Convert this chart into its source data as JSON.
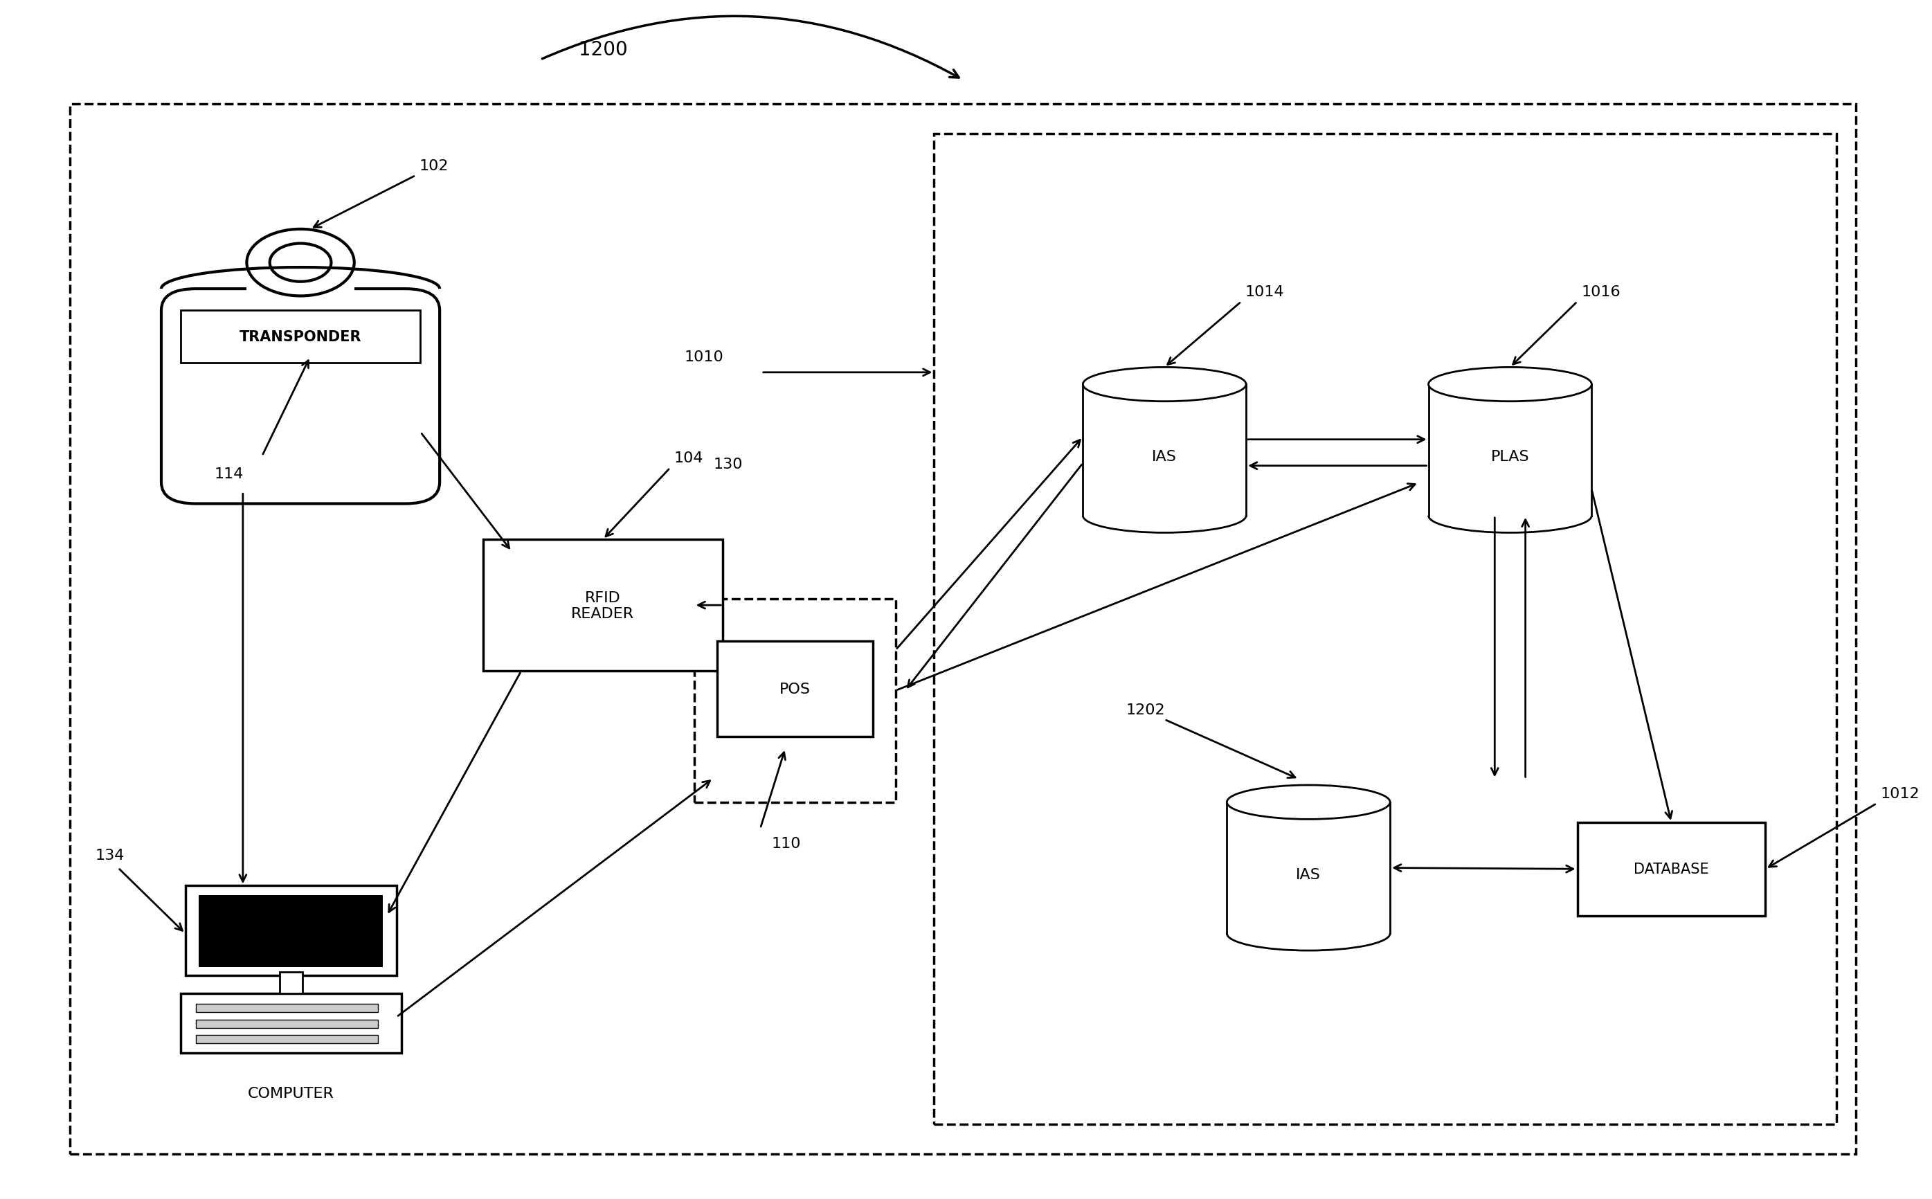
{
  "bg_color": "#ffffff",
  "line_color": "#000000",
  "fig_width": 27.91,
  "fig_height": 17.33,
  "label_1200": "1200",
  "label_102": "102",
  "label_104": "104",
  "label_114": "114",
  "label_134": "134",
  "label_110": "110",
  "label_130": "130",
  "label_1010": "1010",
  "label_1014": "1014",
  "label_1016": "1016",
  "label_1202": "1202",
  "label_1012": "1012",
  "transponder_text": "TRANSPONDER",
  "rfid_text": "RFID\nREADER",
  "pos_text": "POS",
  "ias_top_text": "IAS",
  "plas_text": "PLAS",
  "ias_bot_text": "IAS",
  "database_text": "DATABASE",
  "computer_text": "COMPUTER",
  "font_size": 16
}
